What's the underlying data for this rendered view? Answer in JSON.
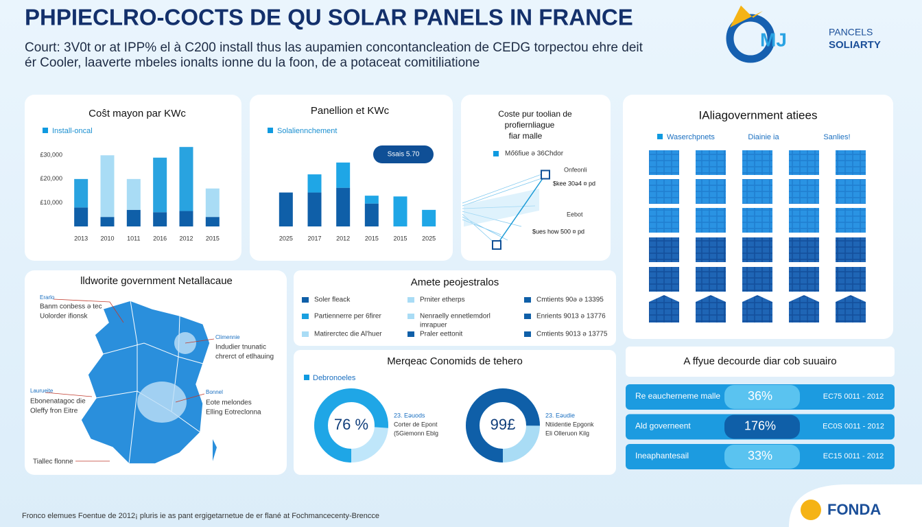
{
  "header": {
    "title": "PHPIECLRO-COCTS DE QU SOLAR PANELS IN FRANCE",
    "subtitle_lines": [
      "Court: 3V0t or at IPP% el à C200 install thus las aupamien concontancleation de CEDG torpectou ehre deit",
      "ér Cooler, laaverte mbeles ionalts ionne du la foon, de a potaceat comitiliatione"
    ],
    "logo": {
      "mark": "MJ",
      "line1": "PANCELS",
      "line2": "SOLIARTY"
    }
  },
  "chart_data": [
    {
      "type": "bar",
      "title": "Coŝt mayon par KWc",
      "categories": [
        "2013",
        "2010",
        "1011",
        "2016",
        "2012",
        "2015"
      ],
      "series": [
        {
          "name": "Install-oncal",
          "color": "#0f5fa8",
          "values": [
            8000,
            4000,
            7000,
            6000,
            6500,
            4000
          ]
        },
        {
          "colors": [
            "#29a3e0",
            "#a9dcf5",
            "#a9dcf5",
            "#29a3e0",
            "#29a3e0",
            "#a9dcf5"
          ],
          "values": [
            12000,
            26000,
            13000,
            23000,
            27000,
            12000
          ]
        }
      ],
      "ylim": [
        0,
        35000
      ],
      "yticks": [
        {
          "value": 30000,
          "label": "£30,000"
        },
        {
          "value": 20000,
          "label": "£20,000"
        },
        {
          "value": 10000,
          "label": "£10,000"
        }
      ]
    },
    {
      "type": "bar",
      "title": "Panellion et KWc",
      "annotation": "Ssais 5.70",
      "categories": [
        "2025",
        "2017",
        "2012",
        "2015",
        "2015",
        "2025"
      ],
      "series": [
        {
          "name": "Solaliennchement",
          "color": "#0f5fa8",
          "values": [
            43,
            43,
            49,
            29,
            0,
            0
          ]
        },
        {
          "color": "#1fa6e6",
          "values": [
            0,
            23,
            32,
            10,
            38,
            21
          ]
        }
      ],
      "ylim": [
        0,
        100
      ]
    },
    {
      "type": "line",
      "title_lines": [
        "Coste pur toolian de",
        "profiernliague",
        "fiar malle"
      ],
      "categories": [
        null,
        null
      ],
      "series": [
        {
          "name": "Mő6fiue ə 36Chdor",
          "color": "#1a9ad6",
          "values": [
            8,
            90
          ]
        }
      ],
      "ylim": [
        0,
        100
      ],
      "annotations": [
        "Onfeonli",
        "$kee 30ə4 ¤ pd",
        "Eebot",
        "$ues how 500 ¤ pd"
      ]
    }
  ],
  "grid_panel": {
    "title": "IAliagovernment atiees",
    "legend": [
      "Waserchpnets",
      "Diainie ia",
      "Sanlies!"
    ]
  },
  "map": {
    "title": "lldworite government Netallacaue",
    "labels": [
      "Erarlo",
      "Banm conbess ə tec",
      "Uolorder ifionsk",
      "Climennie",
      "Indudier tnunatic",
      "chrerct of etlhauing",
      "Laurueite",
      "Ebonenatagoc die",
      "Oleffy fron Eitre",
      "Bonnel",
      "Eote melondes",
      "Elling Eotreclonna",
      "Tiallec flonne"
    ]
  },
  "legend_panel": {
    "title": "Amete peojestralos",
    "items": [
      "Soler fleack",
      "Partiennerre per 6firer",
      "Matirercteс die Al'huer",
      "Prniter etherps",
      "Nenraelly ennetlemdorl",
      "imrapuer",
      "Praler eettonit",
      "Cmtients 90ə ə 13395",
      "Enrients 9013 ə 13776",
      "Cmtients 9013 ə 13775"
    ]
  },
  "donut_panel": {
    "title": "Merqeac Conomids de tehero",
    "legend": "Debronoeles",
    "donuts": [
      {
        "value": 76,
        "value_label": "76 %",
        "notes": [
          "23. Eəuods",
          "Corter de Epont",
          "(5Giemonn Eblg"
        ]
      },
      {
        "value": 75,
        "center_text": "99£",
        "notes": [
          "23. Eəudie",
          "Ntiidentie Epgonk",
          "Eli Olleruon Kilg"
        ]
      }
    ]
  },
  "table": {
    "title": "A ffyue decourde diar cob suuairo",
    "rows": [
      [
        "Re eaucherneme malle",
        "36%",
        "EC75 0011 - 2012"
      ],
      [
        "Ald governeent",
        "176%",
        "EC0S 0011 - 2012"
      ],
      [
        "Ineaphantesail",
        "33%",
        "EC15 0011 - 2012"
      ]
    ]
  },
  "footer": {
    "text": "Fronco elemues Foentue de 2012¡ pluris ie as pant ergigetarnetue de er flané at Fochmancecenty-Brencce",
    "logo": "FONDA"
  }
}
